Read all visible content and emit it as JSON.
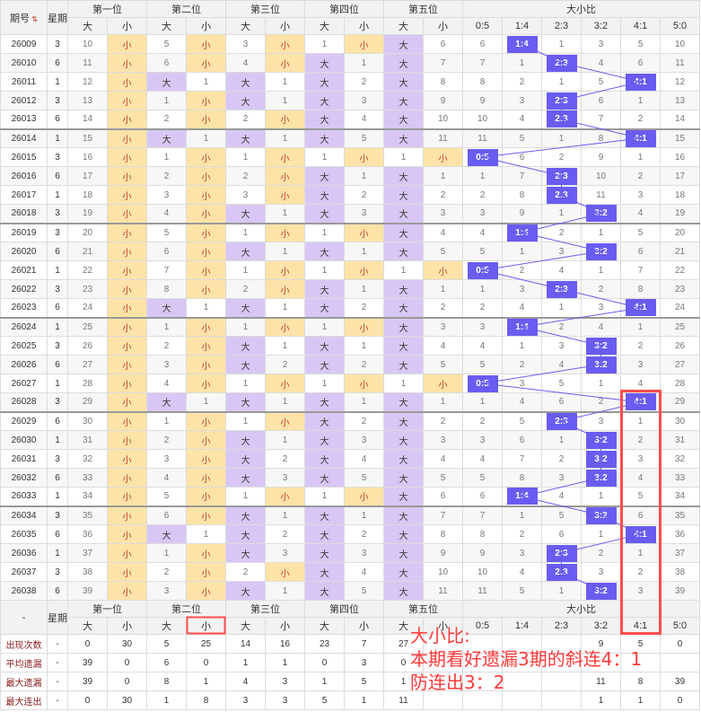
{
  "header": {
    "issue_label": "期号",
    "weekday_label": "星期",
    "positions": [
      "第一位",
      "第二位",
      "第三位",
      "第四位",
      "第五位"
    ],
    "ratio_group": "大小比",
    "big": "大",
    "small": "小",
    "ratio_labels": [
      "0:5",
      "1:4",
      "2:3",
      "3:2",
      "4:1",
      "5:0"
    ]
  },
  "rows": [
    {
      "issue": "26009",
      "wk": "3",
      "p": [
        [
          "10",
          "小"
        ],
        [
          "5",
          "小"
        ],
        [
          "3",
          "小"
        ],
        [
          "1",
          "小"
        ],
        [
          "大",
          "6"
        ]
      ],
      "r": [
        "6",
        "1:4",
        "1",
        "3",
        "5",
        "10"
      ]
    },
    {
      "issue": "26010",
      "wk": "6",
      "p": [
        [
          "11",
          "小"
        ],
        [
          "6",
          "小"
        ],
        [
          "4",
          "小"
        ],
        [
          "大",
          "1"
        ],
        [
          "大",
          "7"
        ]
      ],
      "r": [
        "7",
        "1",
        "2:3",
        "4",
        "6",
        "11"
      ]
    },
    {
      "issue": "26011",
      "wk": "1",
      "p": [
        [
          "12",
          "小"
        ],
        [
          "大",
          "1"
        ],
        [
          "大",
          "1"
        ],
        [
          "大",
          "2"
        ],
        [
          "大",
          "8"
        ]
      ],
      "r": [
        "8",
        "2",
        "1",
        "5",
        "4:1",
        "12"
      ]
    },
    {
      "issue": "26012",
      "wk": "3",
      "p": [
        [
          "13",
          "小"
        ],
        [
          "1",
          "小"
        ],
        [
          "大",
          "1"
        ],
        [
          "大",
          "3"
        ],
        [
          "大",
          "9"
        ]
      ],
      "r": [
        "9",
        "3",
        "2:3",
        "6",
        "1",
        "13"
      ]
    },
    {
      "issue": "26013",
      "wk": "6",
      "p": [
        [
          "14",
          "小"
        ],
        [
          "2",
          "小"
        ],
        [
          "2",
          "小"
        ],
        [
          "大",
          "4"
        ],
        [
          "大",
          "10"
        ]
      ],
      "r": [
        "10",
        "4",
        "2:3",
        "7",
        "2",
        "14"
      ]
    },
    {
      "issue": "26014",
      "wk": "1",
      "p": [
        [
          "15",
          "小"
        ],
        [
          "大",
          "1"
        ],
        [
          "大",
          "1"
        ],
        [
          "大",
          "5"
        ],
        [
          "大",
          "11"
        ]
      ],
      "r": [
        "11",
        "5",
        "1",
        "8",
        "4:1",
        "15"
      ]
    },
    {
      "issue": "26015",
      "wk": "3",
      "p": [
        [
          "16",
          "小"
        ],
        [
          "1",
          "小"
        ],
        [
          "1",
          "小"
        ],
        [
          "1",
          "小"
        ],
        [
          "1",
          "小"
        ]
      ],
      "r": [
        "0:5",
        "6",
        "2",
        "9",
        "1",
        "16"
      ]
    },
    {
      "issue": "26016",
      "wk": "6",
      "p": [
        [
          "17",
          "小"
        ],
        [
          "2",
          "小"
        ],
        [
          "2",
          "小"
        ],
        [
          "大",
          "1"
        ],
        [
          "大",
          "1"
        ]
      ],
      "r": [
        "1",
        "7",
        "2:3",
        "10",
        "2",
        "17"
      ]
    },
    {
      "issue": "26017",
      "wk": "1",
      "p": [
        [
          "18",
          "小"
        ],
        [
          "3",
          "小"
        ],
        [
          "3",
          "小"
        ],
        [
          "大",
          "2"
        ],
        [
          "大",
          "2"
        ]
      ],
      "r": [
        "2",
        "8",
        "2:3",
        "11",
        "3",
        "18"
      ]
    },
    {
      "issue": "26018",
      "wk": "3",
      "p": [
        [
          "19",
          "小"
        ],
        [
          "4",
          "小"
        ],
        [
          "大",
          "1"
        ],
        [
          "大",
          "3"
        ],
        [
          "大",
          "3"
        ]
      ],
      "r": [
        "3",
        "9",
        "1",
        "3:2",
        "4",
        "19"
      ]
    },
    {
      "issue": "26019",
      "wk": "3",
      "p": [
        [
          "20",
          "小"
        ],
        [
          "5",
          "小"
        ],
        [
          "1",
          "小"
        ],
        [
          "1",
          "小"
        ],
        [
          "大",
          "4"
        ]
      ],
      "r": [
        "4",
        "1:4",
        "2",
        "1",
        "5",
        "20"
      ]
    },
    {
      "issue": "26020",
      "wk": "6",
      "p": [
        [
          "21",
          "小"
        ],
        [
          "6",
          "小"
        ],
        [
          "大",
          "1"
        ],
        [
          "大",
          "1"
        ],
        [
          "大",
          "5"
        ]
      ],
      "r": [
        "5",
        "1",
        "3",
        "3:2",
        "6",
        "21"
      ]
    },
    {
      "issue": "26021",
      "wk": "1",
      "p": [
        [
          "22",
          "小"
        ],
        [
          "7",
          "小"
        ],
        [
          "1",
          "小"
        ],
        [
          "1",
          "小"
        ],
        [
          "1",
          "小"
        ]
      ],
      "r": [
        "0:5",
        "2",
        "4",
        "1",
        "7",
        "22"
      ]
    },
    {
      "issue": "26022",
      "wk": "3",
      "p": [
        [
          "23",
          "小"
        ],
        [
          "8",
          "小"
        ],
        [
          "2",
          "小"
        ],
        [
          "大",
          "1"
        ],
        [
          "大",
          "1"
        ]
      ],
      "r": [
        "1",
        "3",
        "2:3",
        "2",
        "8",
        "23"
      ]
    },
    {
      "issue": "26023",
      "wk": "6",
      "p": [
        [
          "24",
          "小"
        ],
        [
          "大",
          "1"
        ],
        [
          "大",
          "1"
        ],
        [
          "大",
          "2"
        ],
        [
          "大",
          "2"
        ]
      ],
      "r": [
        "2",
        "4",
        "1",
        "3",
        "4:1",
        "24"
      ]
    },
    {
      "issue": "26024",
      "wk": "1",
      "p": [
        [
          "25",
          "小"
        ],
        [
          "1",
          "小"
        ],
        [
          "1",
          "小"
        ],
        [
          "1",
          "小"
        ],
        [
          "大",
          "3"
        ]
      ],
      "r": [
        "3",
        "1:4",
        "2",
        "4",
        "1",
        "25"
      ]
    },
    {
      "issue": "26025",
      "wk": "3",
      "p": [
        [
          "26",
          "小"
        ],
        [
          "2",
          "小"
        ],
        [
          "大",
          "1"
        ],
        [
          "大",
          "1"
        ],
        [
          "大",
          "4"
        ]
      ],
      "r": [
        "4",
        "1",
        "3",
        "3:2",
        "2",
        "26"
      ]
    },
    {
      "issue": "26026",
      "wk": "6",
      "p": [
        [
          "27",
          "小"
        ],
        [
          "3",
          "小"
        ],
        [
          "大",
          "2"
        ],
        [
          "大",
          "2"
        ],
        [
          "大",
          "5"
        ]
      ],
      "r": [
        "5",
        "2",
        "4",
        "3:2",
        "3",
        "27"
      ]
    },
    {
      "issue": "26027",
      "wk": "1",
      "p": [
        [
          "28",
          "小"
        ],
        [
          "4",
          "小"
        ],
        [
          "1",
          "小"
        ],
        [
          "1",
          "小"
        ],
        [
          "1",
          "小"
        ]
      ],
      "r": [
        "0:5",
        "3",
        "5",
        "1",
        "4",
        "28"
      ]
    },
    {
      "issue": "26028",
      "wk": "3",
      "p": [
        [
          "29",
          "小"
        ],
        [
          "大",
          "1"
        ],
        [
          "大",
          "1"
        ],
        [
          "大",
          "1"
        ],
        [
          "大",
          "1"
        ]
      ],
      "r": [
        "1",
        "4",
        "6",
        "2",
        "4:1",
        "29"
      ]
    },
    {
      "issue": "26029",
      "wk": "6",
      "p": [
        [
          "30",
          "小"
        ],
        [
          "1",
          "小"
        ],
        [
          "1",
          "小"
        ],
        [
          "大",
          "2"
        ],
        [
          "大",
          "2"
        ]
      ],
      "r": [
        "2",
        "5",
        "2:3",
        "3",
        "1",
        "30"
      ]
    },
    {
      "issue": "26030",
      "wk": "1",
      "p": [
        [
          "31",
          "小"
        ],
        [
          "2",
          "小"
        ],
        [
          "大",
          "1"
        ],
        [
          "大",
          "3"
        ],
        [
          "大",
          "3"
        ]
      ],
      "r": [
        "3",
        "6",
        "1",
        "3:2",
        "2",
        "31"
      ]
    },
    {
      "issue": "26031",
      "wk": "3",
      "p": [
        [
          "32",
          "小"
        ],
        [
          "3",
          "小"
        ],
        [
          "大",
          "2"
        ],
        [
          "大",
          "4"
        ],
        [
          "大",
          "4"
        ]
      ],
      "r": [
        "4",
        "7",
        "2",
        "3:2",
        "3",
        "32"
      ]
    },
    {
      "issue": "26032",
      "wk": "6",
      "p": [
        [
          "33",
          "小"
        ],
        [
          "4",
          "小"
        ],
        [
          "大",
          "3"
        ],
        [
          "大",
          "5"
        ],
        [
          "大",
          "5"
        ]
      ],
      "r": [
        "5",
        "8",
        "3",
        "3:2",
        "4",
        "33"
      ]
    },
    {
      "issue": "26033",
      "wk": "1",
      "p": [
        [
          "34",
          "小"
        ],
        [
          "5",
          "小"
        ],
        [
          "1",
          "小"
        ],
        [
          "1",
          "小"
        ],
        [
          "大",
          "6"
        ]
      ],
      "r": [
        "6",
        "1:4",
        "4",
        "1",
        "5",
        "34"
      ]
    },
    {
      "issue": "26034",
      "wk": "3",
      "p": [
        [
          "35",
          "小"
        ],
        [
          "6",
          "小"
        ],
        [
          "大",
          "1"
        ],
        [
          "大",
          "1"
        ],
        [
          "大",
          "7"
        ]
      ],
      "r": [
        "7",
        "1",
        "5",
        "3:2",
        "6",
        "35"
      ]
    },
    {
      "issue": "26035",
      "wk": "6",
      "p": [
        [
          "36",
          "小"
        ],
        [
          "大",
          "1"
        ],
        [
          "大",
          "2"
        ],
        [
          "大",
          "2"
        ],
        [
          "大",
          "8"
        ]
      ],
      "r": [
        "8",
        "2",
        "6",
        "1",
        "4:1",
        "36"
      ]
    },
    {
      "issue": "26036",
      "wk": "1",
      "p": [
        [
          "37",
          "小"
        ],
        [
          "1",
          "小"
        ],
        [
          "大",
          "3"
        ],
        [
          "大",
          "3"
        ],
        [
          "大",
          "9"
        ]
      ],
      "r": [
        "9",
        "3",
        "2:3",
        "2",
        "1",
        "37"
      ]
    },
    {
      "issue": "26037",
      "wk": "3",
      "p": [
        [
          "38",
          "小"
        ],
        [
          "2",
          "小"
        ],
        [
          "2",
          "小"
        ],
        [
          "大",
          "4"
        ],
        [
          "大",
          "10"
        ]
      ],
      "r": [
        "10",
        "4",
        "2:3",
        "3",
        "2",
        "38"
      ]
    },
    {
      "issue": "26038",
      "wk": "6",
      "p": [
        [
          "39",
          "小"
        ],
        [
          "3",
          "小"
        ],
        [
          "大",
          "1"
        ],
        [
          "大",
          "5"
        ],
        [
          "大",
          "11"
        ]
      ],
      "r": [
        "11",
        "5",
        "1",
        "3:2",
        "3",
        "39"
      ]
    }
  ],
  "footer": {
    "dash": "-",
    "weekday": "星期",
    "stats": [
      {
        "label": "出现次数",
        "v": [
          "-",
          "0",
          "30",
          "5",
          "25",
          "14",
          "16",
          "23",
          "7",
          "27",
          "",
          "",
          "",
          "",
          "9",
          "5",
          "0"
        ]
      },
      {
        "label": "平均遗漏",
        "v": [
          "-",
          "39",
          "0",
          "6",
          "0",
          "1",
          "1",
          "0",
          "3",
          "0",
          "",
          "",
          "",
          "",
          "",
          "",
          ""
        ]
      },
      {
        "label": "最大遗漏",
        "v": [
          "-",
          "39",
          "0",
          "8",
          "1",
          "4",
          "3",
          "1",
          "5",
          "1",
          "",
          "",
          "",
          "",
          "11",
          "8",
          "39"
        ]
      },
      {
        "label": "最大连出",
        "v": [
          "-",
          "0",
          "30",
          "1",
          "8",
          "3",
          "3",
          "5",
          "1",
          "11",
          "",
          "",
          "",
          "",
          "1",
          "1",
          "0"
        ]
      }
    ]
  },
  "annotation": {
    "line1": "大小比:",
    "line2": "本期看好遗漏3期的斜连4：1",
    "line3": "防连出3：2",
    "color": "#ff3b3b"
  },
  "colors": {
    "small_bg": "#fde3a7",
    "big_bg": "#d8c7f5",
    "hit_bg": "#6a5cf0",
    "line": "#6a5cf0",
    "highlight": "#ff4d4d"
  }
}
